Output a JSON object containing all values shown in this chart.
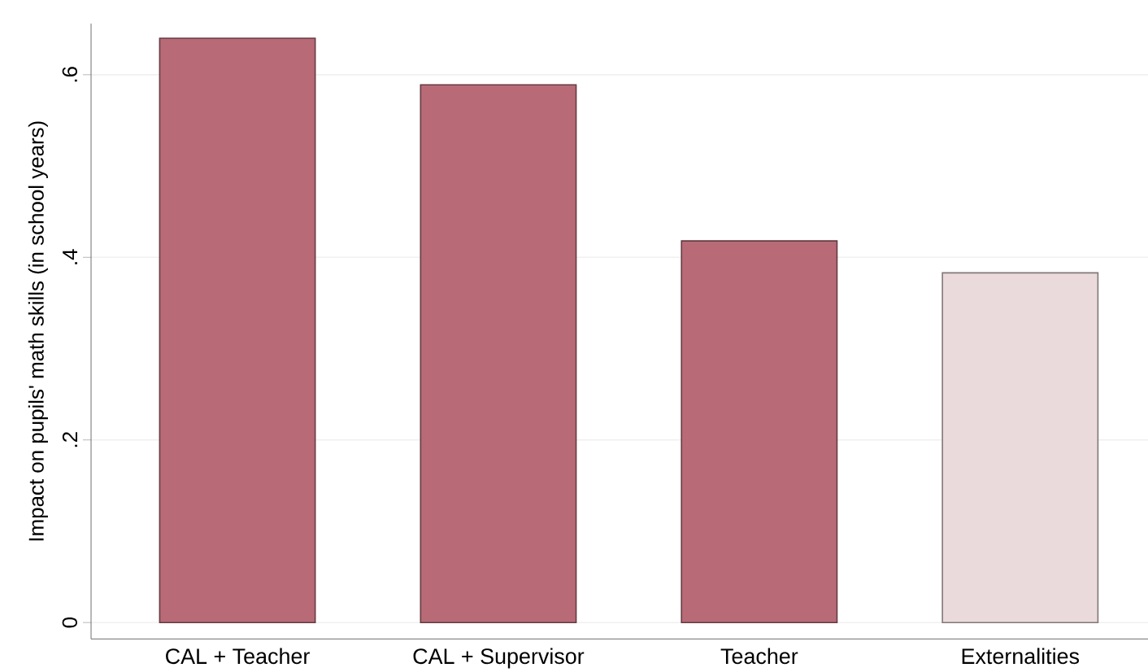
{
  "chart_data": {
    "type": "bar",
    "ylabel": "Impact on pupils' math skills (in school years)",
    "categories": [
      "CAL + Teacher",
      "CAL + Supervisor",
      "Teacher",
      "Externalities"
    ],
    "values": [
      0.64,
      0.589,
      0.418,
      0.383
    ],
    "colors": [
      "#b86b77",
      "#b86b77",
      "#b86b77",
      "#ebdadb"
    ],
    "ylim": [
      -0.018,
      0.656
    ],
    "yticks": [
      {
        "value": 0,
        "label": "0"
      },
      {
        "value": 0.2,
        "label": ".2"
      },
      {
        "value": 0.4,
        "label": ".4"
      },
      {
        "value": 0.6,
        "label": ".6"
      }
    ],
    "grid": "y"
  }
}
